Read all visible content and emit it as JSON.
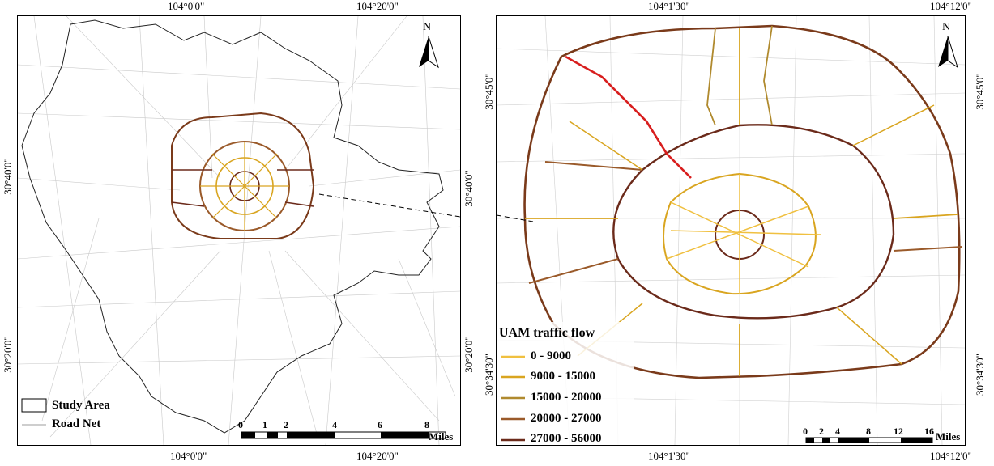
{
  "left_map": {
    "top_ticks": [
      "104°0'0\"",
      "104°20'0\""
    ],
    "bottom_ticks": [
      "104°0'0\"",
      "104°20'0\""
    ],
    "left_ticks": [
      "30°40'0\"",
      "30°20'0\""
    ],
    "right_ticks": [
      "30°40'0\"",
      "30°20'0\""
    ],
    "north_label": "N",
    "legend": {
      "study_area": "Study Area",
      "road_net": "Road Net"
    },
    "scale": {
      "ticks": [
        "0",
        "1",
        "2",
        "4",
        "6",
        "8"
      ],
      "unit": "Miles"
    }
  },
  "right_map": {
    "top_ticks": [
      "104°1'30\"",
      "104°12'0\""
    ],
    "bottom_ticks": [
      "104°1'30\"",
      "104°12'0\""
    ],
    "left_ticks": [
      "30°45'0\"",
      "30°34'30\""
    ],
    "right_ticks": [
      "30°45'0\"",
      "30°34'30\""
    ],
    "north_label": "N",
    "legend": {
      "title": "UAM traffic flow",
      "classes": [
        {
          "label": "0 - 9000",
          "color": "#f0c040"
        },
        {
          "label": "9000 - 15000",
          "color": "#d9a520"
        },
        {
          "label": "15000 - 20000",
          "color": "#b08a2e"
        },
        {
          "label": "20000 - 27000",
          "color": "#9a5a2a"
        },
        {
          "label": "27000 - 56000",
          "color": "#6b2a1a"
        }
      ]
    },
    "scale": {
      "ticks": [
        "0",
        "2",
        "4",
        "8",
        "12",
        "16"
      ],
      "unit": "Miles"
    },
    "highlight_color": "#d81e1e"
  }
}
